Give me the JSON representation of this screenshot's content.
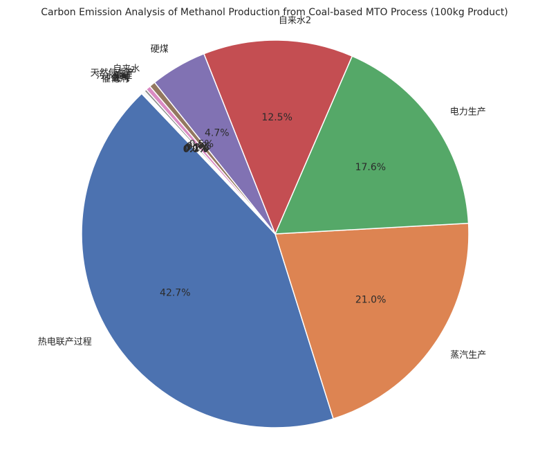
{
  "chart_data": {
    "type": "pie",
    "title": "Carbon Emission Analysis of Methanol Production from Coal-based MTO Process (100kg Product)",
    "slices": [
      {
        "label": "热电联产过程",
        "value": 42.7,
        "pct_label": "42.7%",
        "color": "#4c72b0"
      },
      {
        "label": "蒸汽生产",
        "value": 21.0,
        "pct_label": "21.0%",
        "color": "#dd8452"
      },
      {
        "label": "电力生产",
        "value": 17.6,
        "pct_label": "17.6%",
        "color": "#55a868"
      },
      {
        "label": "自来水2",
        "value": 12.5,
        "pct_label": "12.5%",
        "color": "#c44e52"
      },
      {
        "label": "硬煤",
        "value": 4.7,
        "pct_label": "4.7%",
        "color": "#8172b3"
      },
      {
        "label": "自来水",
        "value": 0.5,
        "pct_label": "0.5%",
        "color": "#937860"
      },
      {
        "label": "天然气生产",
        "value": 0.4,
        "pct_label": "0.4%",
        "color": "#da8bc3"
      },
      {
        "label": "污水处理",
        "value": 0.2,
        "pct_label": "0.2%",
        "color": "#8c8c8c"
      },
      {
        "label": "甲醇",
        "value": 0.1,
        "pct_label": "0.1%",
        "color": "#ccb974"
      },
      {
        "label": "氮气",
        "value": 0.1,
        "pct_label": "0.1%",
        "color": "#64b5cd"
      },
      {
        "label": "氧气",
        "value": 0.05,
        "pct_label": "0.0%",
        "color": "#4c72b0"
      },
      {
        "label": "催化剂",
        "value": 0.05,
        "pct_label": "0.0%",
        "color": "#dd8452"
      }
    ]
  }
}
